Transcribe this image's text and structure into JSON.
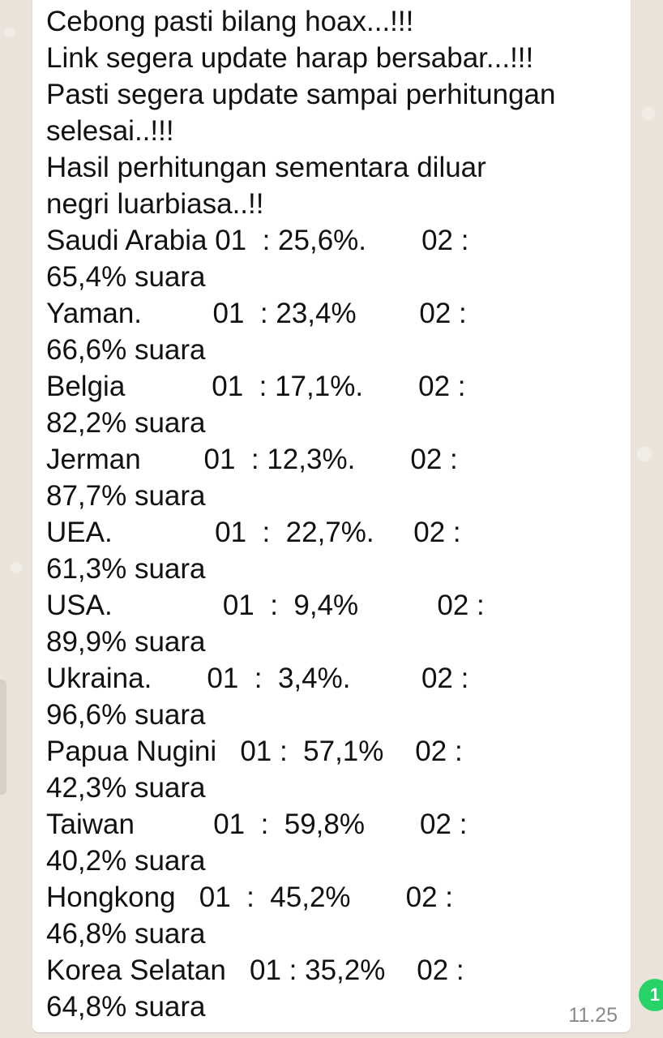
{
  "message": {
    "lines": [
      "Cebong pasti bilang hoax...!!!",
      "Link segera update harap bersabar...!!!",
      "Pasti segera update sampai perhitungan",
      "selesai..!!!",
      "Hasil perhitungan sementara diluar",
      "negri luarbiasa..!!",
      "Saudi Arabia 01  : 25,6%.       02 :",
      "65,4% suara",
      "Yaman.         01  : 23,4%        02 :",
      "66,6% suara",
      "Belgia           01  : 17,1%.       02 :",
      "82,2% suara",
      "Jerman        01  : 12,3%.       02 :",
      "87,7% suara",
      "UEA.             01  :  22,7%.     02 :",
      "61,3% suara",
      "USA.              01  :  9,4%          02 :",
      "89,9% suara",
      "Ukraina.       01  :  3,4%.         02 :",
      "96,6% suara",
      "Papua Nugini   01 :  57,1%    02 :",
      "42,3% suara",
      "Taiwan          01  :  59,8%       02 :",
      "40,2% suara",
      "Hongkong   01  :  45,2%       02 :",
      "46,8% suara",
      "Korea Selatan   01 : 35,2%    02 :",
      "64,8% suara"
    ],
    "time": "11.25"
  },
  "unread_badge": "1",
  "colors": {
    "background": "#e9e3d9",
    "bubble": "#ffffff",
    "badge": "#25d366"
  }
}
